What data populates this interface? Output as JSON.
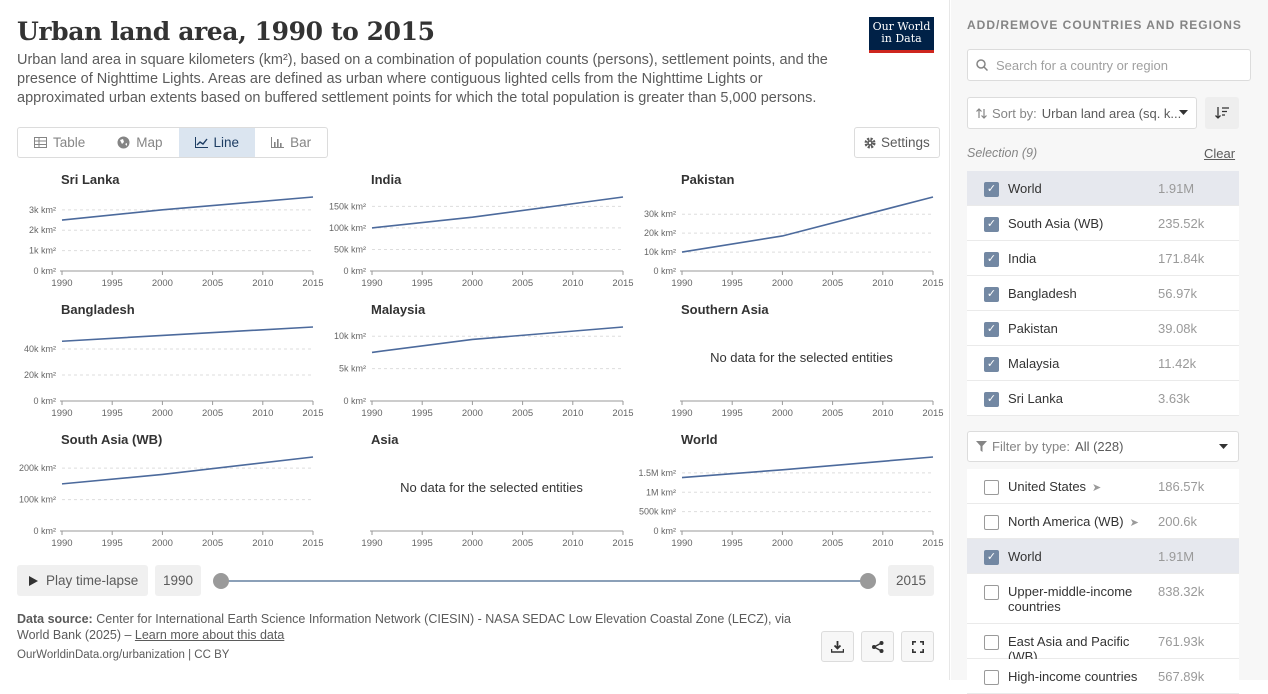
{
  "header": {
    "title": "Urban land area, 1990 to 2015",
    "subtitle": "Urban land area in square kilometers (km²), based on a combination of population counts (persons), settlement points, and the presence of Nighttime Lights. Areas are defined as urban where contiguous lighted cells from the Nighttime Lights or approximated urban extents based on buffered settlement points for which the total population is greater than 5,000 persons.",
    "logo_line1": "Our World",
    "logo_line2": "in Data"
  },
  "tabs": [
    {
      "label": "Table",
      "icon": "table-icon"
    },
    {
      "label": "Map",
      "icon": "globe-icon"
    },
    {
      "label": "Line",
      "icon": "line-chart-icon",
      "active": true
    },
    {
      "label": "Bar",
      "icon": "bar-chart-icon"
    }
  ],
  "settings_label": "Settings",
  "chart_data": [
    {
      "type": "line",
      "title": "Sri Lanka",
      "x": [
        1990,
        2000,
        2015
      ],
      "values": [
        2500,
        3000,
        3630
      ],
      "ylim": [
        0,
        3630
      ],
      "yticks": [
        0,
        1000,
        2000,
        3000
      ],
      "ytick_labels": [
        "0 km²",
        "1k km²",
        "2k km²",
        "3k km²"
      ]
    },
    {
      "type": "line",
      "title": "India",
      "x": [
        1990,
        2000,
        2015
      ],
      "values": [
        100000,
        125000,
        171840
      ],
      "ylim": [
        0,
        171840
      ],
      "yticks": [
        0,
        50000,
        100000,
        150000
      ],
      "ytick_labels": [
        "0 km²",
        "50k km²",
        "100k km²",
        "150k km²"
      ]
    },
    {
      "type": "line",
      "title": "Pakistan",
      "x": [
        1990,
        2000,
        2015
      ],
      "values": [
        10000,
        18500,
        39080
      ],
      "ylim": [
        0,
        39080
      ],
      "yticks": [
        0,
        10000,
        20000,
        30000
      ],
      "ytick_labels": [
        "0 km²",
        "10k km²",
        "20k km²",
        "30k km²"
      ]
    },
    {
      "type": "line",
      "title": "Bangladesh",
      "x": [
        1990,
        2000,
        2015
      ],
      "values": [
        46000,
        50500,
        56970
      ],
      "ylim": [
        0,
        56970
      ],
      "yticks": [
        0,
        20000,
        40000
      ],
      "ytick_labels": [
        "0 km²",
        "20k km²",
        "40k km²"
      ]
    },
    {
      "type": "line",
      "title": "Malaysia",
      "x": [
        1990,
        2000,
        2015
      ],
      "values": [
        7500,
        9500,
        11420
      ],
      "ylim": [
        0,
        11420
      ],
      "yticks": [
        0,
        5000,
        10000
      ],
      "ytick_labels": [
        "0 km²",
        "5k km²",
        "10k km²"
      ]
    },
    {
      "type": "line",
      "title": "Southern Asia",
      "no_data": "No data for the selected entities"
    },
    {
      "type": "line",
      "title": "South Asia (WB)",
      "x": [
        1990,
        2000,
        2015
      ],
      "values": [
        150000,
        180000,
        235520
      ],
      "ylim": [
        0,
        235520
      ],
      "yticks": [
        0,
        100000,
        200000
      ],
      "ytick_labels": [
        "0 km²",
        "100k km²",
        "200k km²"
      ]
    },
    {
      "type": "line",
      "title": "Asia",
      "no_data": "No data for the selected entities"
    },
    {
      "type": "line",
      "title": "World",
      "x": [
        1990,
        2000,
        2015
      ],
      "values": [
        1380000,
        1580000,
        1910000
      ],
      "ylim": [
        0,
        1910000
      ],
      "yticks": [
        0,
        500000,
        1000000,
        1500000
      ],
      "ytick_labels": [
        "0 km²",
        "500k km²",
        "1M km²",
        "1.5M km²"
      ]
    }
  ],
  "x_ticks": [
    "1990",
    "1995",
    "2000",
    "2005",
    "2010",
    "2015"
  ],
  "timeline": {
    "play_label": "Play time-lapse",
    "start": "1990",
    "end": "2015"
  },
  "footer": {
    "source_label": "Data source:",
    "source_text": "Center for International Earth Science Information Network (CIESIN) - NASA SEDAC Low Elevation Coastal Zone (LECZ), via World Bank (2025) –",
    "learn_more": "Learn more about this data",
    "citation": "OurWorldinData.org/urbanization | CC BY"
  },
  "sidebar": {
    "title": "ADD/REMOVE COUNTRIES AND REGIONS",
    "search_placeholder": "Search for a country or region",
    "sort_label": "Sort by:",
    "sort_value": "Urban land area (sq. k...",
    "selection_label": "Selection (9)",
    "clear_label": "Clear",
    "selected": [
      {
        "name": "World",
        "value": "1.91M",
        "hl": true
      },
      {
        "name": "South Asia (WB)",
        "value": "235.52k"
      },
      {
        "name": "India",
        "value": "171.84k"
      },
      {
        "name": "Bangladesh",
        "value": "56.97k"
      },
      {
        "name": "Pakistan",
        "value": "39.08k"
      },
      {
        "name": "Malaysia",
        "value": "11.42k"
      },
      {
        "name": "Sri Lanka",
        "value": "3.63k"
      }
    ],
    "filter_label": "Filter by type:",
    "filter_value": "All (228)",
    "all": [
      {
        "name": "United States",
        "value": "186.57k",
        "checked": false,
        "arrow": true
      },
      {
        "name": "North America (WB)",
        "value": "200.6k",
        "checked": false,
        "arrow": true
      },
      {
        "name": "World",
        "value": "1.91M",
        "checked": true,
        "hl": true
      },
      {
        "name": "Upper-middle-income countries",
        "value": "838.32k",
        "checked": false
      },
      {
        "name": "East Asia and Pacific (WB)",
        "value": "761.93k",
        "checked": false
      },
      {
        "name": "High-income countries",
        "value": "567.89k",
        "checked": false
      }
    ]
  },
  "colors": {
    "line": "#4c6a9c",
    "accent": "#002147"
  }
}
